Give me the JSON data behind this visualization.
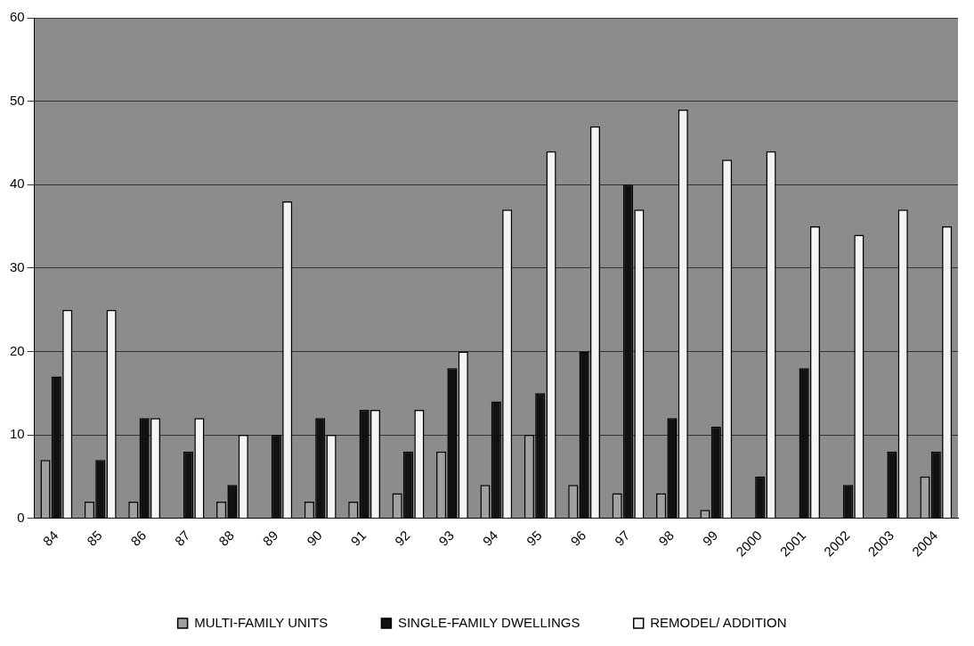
{
  "chart_data": {
    "type": "bar",
    "categories": [
      "84",
      "85",
      "86",
      "87",
      "88",
      "89",
      "90",
      "91",
      "92",
      "93",
      "94",
      "95",
      "96",
      "97",
      "98",
      "99",
      "2000",
      "2001",
      "2002",
      "2003",
      "2004"
    ],
    "series": [
      {
        "name": "MULTI-FAMILY UNITS",
        "color": "#a0a0a0",
        "values": [
          7,
          2,
          2,
          null,
          2,
          null,
          2,
          2,
          3,
          8,
          4,
          10,
          4,
          3,
          3,
          1,
          null,
          null,
          null,
          null,
          5
        ]
      },
      {
        "name": "SINGLE-FAMILY DWELLINGS",
        "color": "#111111",
        "values": [
          17,
          7,
          12,
          8,
          4,
          10,
          12,
          13,
          8,
          18,
          14,
          15,
          20,
          40,
          12,
          11,
          5,
          18,
          4,
          8,
          8
        ]
      },
      {
        "name": "REMODEL/ ADDITION",
        "color": "#f4f4f4",
        "values": [
          25,
          25,
          12,
          12,
          10,
          38,
          10,
          13,
          13,
          20,
          37,
          44,
          47,
          37,
          49,
          43,
          44,
          35,
          34,
          37,
          35
        ]
      }
    ],
    "ylim": [
      0,
      60
    ],
    "yticks": [
      0,
      10,
      20,
      30,
      40,
      50,
      60
    ],
    "grid": "y",
    "legend": "bottom"
  }
}
